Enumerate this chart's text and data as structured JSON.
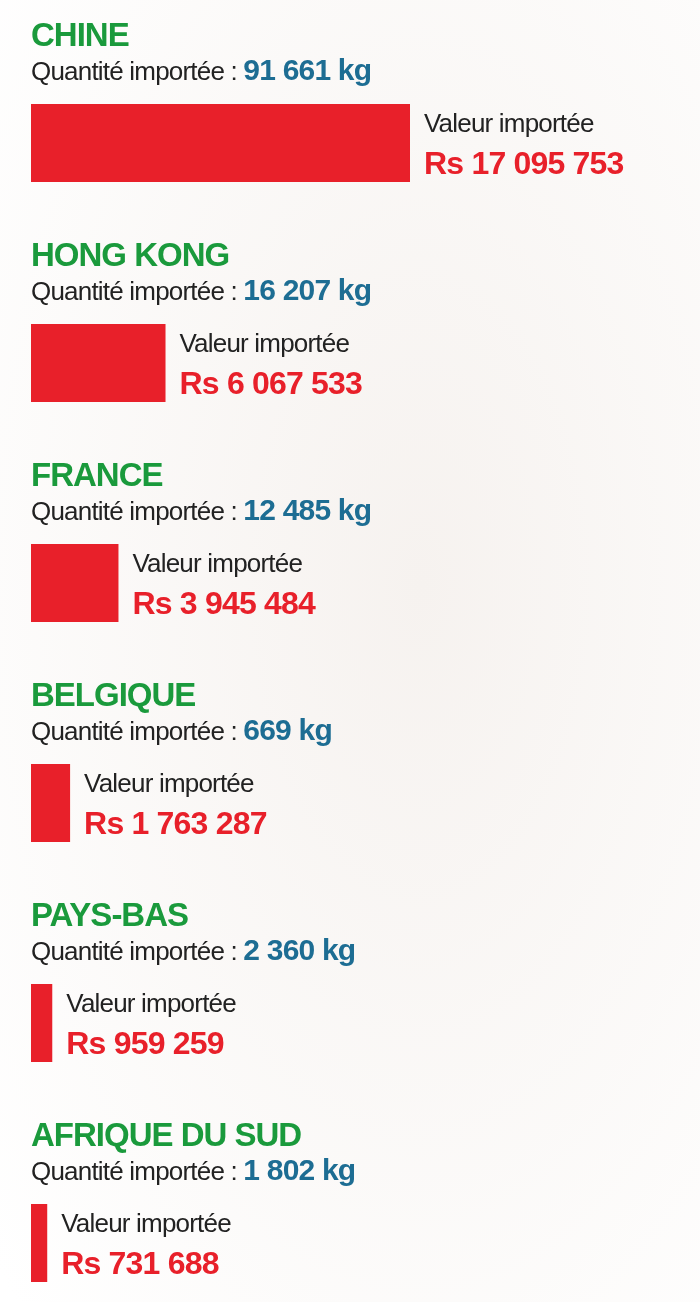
{
  "chart_data": {
    "type": "bar",
    "orientation": "horizontal",
    "categories": [
      "CHINE",
      "HONG KONG",
      "FRANCE",
      "BELGIQUE",
      "PAYS-BAS",
      "AFRIQUE DU SUD"
    ],
    "values": [
      17095753,
      6067533,
      3945484,
      1763287,
      959259,
      731688
    ],
    "color": "#e8202a",
    "value_labels": [
      "Valeur importée\nRs 17 095 753",
      "Valeur importée\nRs 6 067 533",
      "Valeur importée\nRs 3 945 484",
      "Valeur importée\nRs 1 763 287",
      "Valeur importée\nRs 959 259",
      "Valeur importée\nRs 731 688"
    ],
    "annotations": [
      "Quantité importée : 91 661 kg",
      "Quantité importée : 16 207 kg",
      "Quantité importée : 12 485 kg",
      "Quantité importée : 669 kg",
      "Quantité importée : 2 360 kg",
      "Quantité importée : 1 802 kg"
    ]
  }
}
